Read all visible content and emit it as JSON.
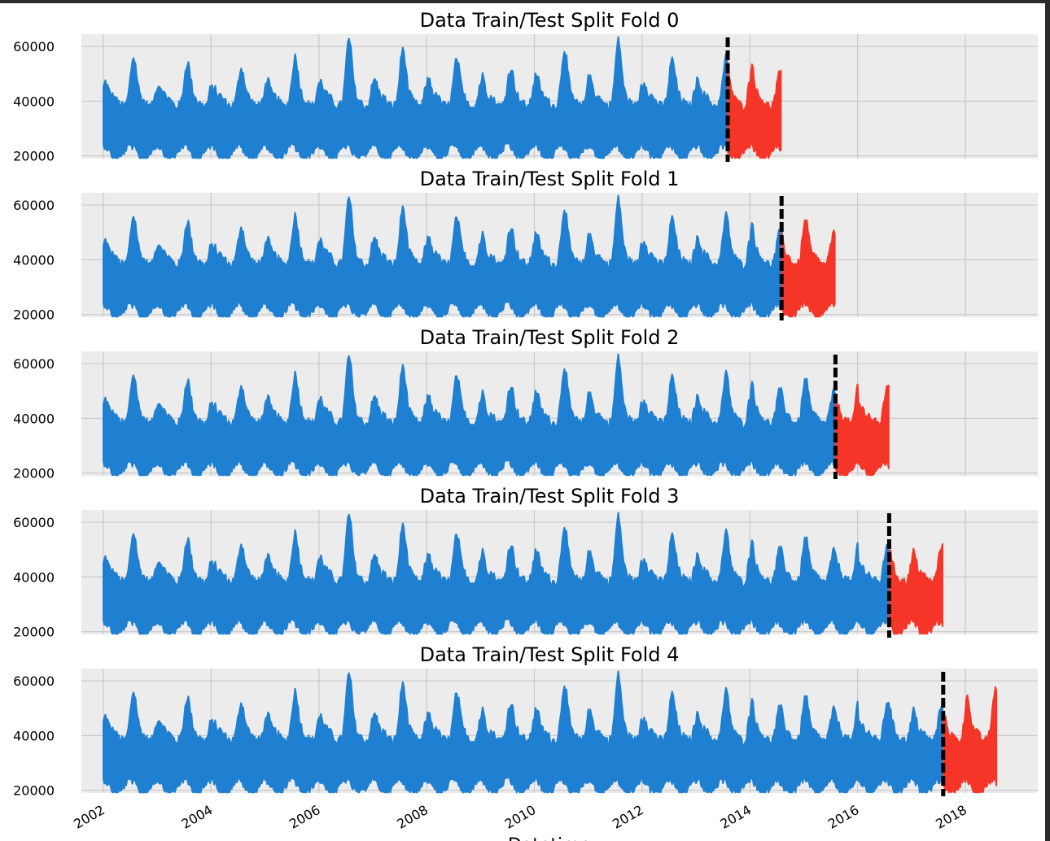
{
  "chart_data": {
    "type": "line",
    "xlabel": "Datetime",
    "x_ticks": [
      "2002",
      "2004",
      "2006",
      "2008",
      "2010",
      "2012",
      "2014",
      "2016",
      "2018"
    ],
    "y_ticks": [
      "20000",
      "40000",
      "60000"
    ],
    "xlim": [
      "2001-11",
      "2019-01"
    ],
    "ylim": [
      19000,
      64500
    ],
    "grid": true,
    "colors": {
      "train": "#1f7fd0",
      "test": "#f53527",
      "split": "#000000",
      "axes_bg": "#ececec",
      "figure_bg": "#ffffff"
    },
    "series_start": "2002-01-01",
    "series_end": "2018-08-03",
    "folds": [
      {
        "title": "Data Train/Test Split Fold 0",
        "split": "2013-08-03",
        "test_end": "2014-08-03"
      },
      {
        "title": "Data Train/Test Split Fold 1",
        "split": "2014-08-03",
        "test_end": "2015-08-03"
      },
      {
        "title": "Data Train/Test Split Fold 2",
        "split": "2015-08-03",
        "test_end": "2016-08-02"
      },
      {
        "title": "Data Train/Test Split Fold 3",
        "split": "2016-08-02",
        "test_end": "2017-08-03"
      },
      {
        "title": "Data Train/Test Split Fold 4",
        "split": "2017-08-03",
        "test_end": "2018-08-03"
      }
    ],
    "yearly_peaks": [
      {
        "year": 2002,
        "summer_peak": 56000,
        "winter_peak": 47000
      },
      {
        "year": 2003,
        "summer_peak": 54000,
        "winter_peak": 46000
      },
      {
        "year": 2004,
        "summer_peak": 52000,
        "winter_peak": 45000
      },
      {
        "year": 2005,
        "summer_peak": 56000,
        "winter_peak": 48000
      },
      {
        "year": 2006,
        "summer_peak": 62500,
        "winter_peak": 47000
      },
      {
        "year": 2007,
        "summer_peak": 59000,
        "winter_peak": 48000
      },
      {
        "year": 2008,
        "summer_peak": 55000,
        "winter_peak": 48000
      },
      {
        "year": 2009,
        "summer_peak": 52000,
        "winter_peak": 49000
      },
      {
        "year": 2010,
        "summer_peak": 59000,
        "winter_peak": 50000
      },
      {
        "year": 2011,
        "summer_peak": 62000,
        "winter_peak": 48000
      },
      {
        "year": 2012,
        "summer_peak": 55000,
        "winter_peak": 47000
      },
      {
        "year": 2013,
        "summer_peak": 56000,
        "winter_peak": 48000
      },
      {
        "year": 2014,
        "summer_peak": 50000,
        "winter_peak": 53000
      },
      {
        "year": 2015,
        "summer_peak": 49000,
        "winter_peak": 55000
      },
      {
        "year": 2016,
        "summer_peak": 53000,
        "winter_peak": 45000
      },
      {
        "year": 2017,
        "summer_peak": 51000,
        "winter_peak": 49000
      },
      {
        "year": 2018,
        "summer_peak": 57000,
        "winter_peak": 55000
      }
    ]
  }
}
